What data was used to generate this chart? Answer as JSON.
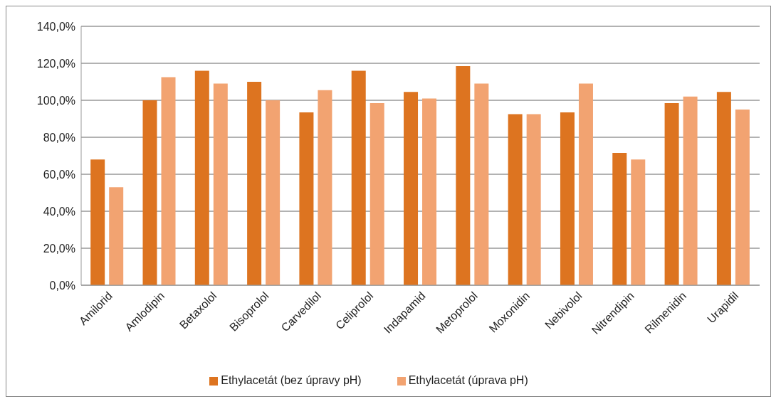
{
  "chart_data": {
    "type": "bar",
    "categories": [
      "Amilorid",
      "Amlodipin",
      "Betaxolol",
      "Bisoprolol",
      "Carvedilol",
      "Celiprolol",
      "Indapamid",
      "Metoprolol",
      "Moxonidin",
      "Nebivolol",
      "Nitrendipin",
      "Rilmenidin",
      "Urapidil"
    ],
    "series": [
      {
        "name": "Ethylacetát (bez úpravy pH)",
        "color": "#dd7420",
        "values": [
          68,
          100,
          116,
          110,
          93.5,
          116,
          104.5,
          118.5,
          92.5,
          93.5,
          71.5,
          98.5,
          104.5
        ]
      },
      {
        "name": "Ethylacetát (úprava pH)",
        "color": "#f2a371",
        "values": [
          53,
          112.5,
          109,
          100,
          105.5,
          98.5,
          101,
          109,
          92.5,
          109,
          68,
          102,
          95
        ]
      }
    ],
    "ylim": [
      0,
      140
    ],
    "yticks": [
      {
        "value": 0,
        "label": "0,0%"
      },
      {
        "value": 20,
        "label": "20,0%"
      },
      {
        "value": 40,
        "label": "40,0%"
      },
      {
        "value": 60,
        "label": "60,0%"
      },
      {
        "value": 80,
        "label": "80,0%"
      },
      {
        "value": 100,
        "label": "100,0%"
      },
      {
        "value": 120,
        "label": "120,0%"
      },
      {
        "value": 140,
        "label": "140,0%"
      }
    ],
    "grid": "y",
    "legend": "bottom"
  }
}
